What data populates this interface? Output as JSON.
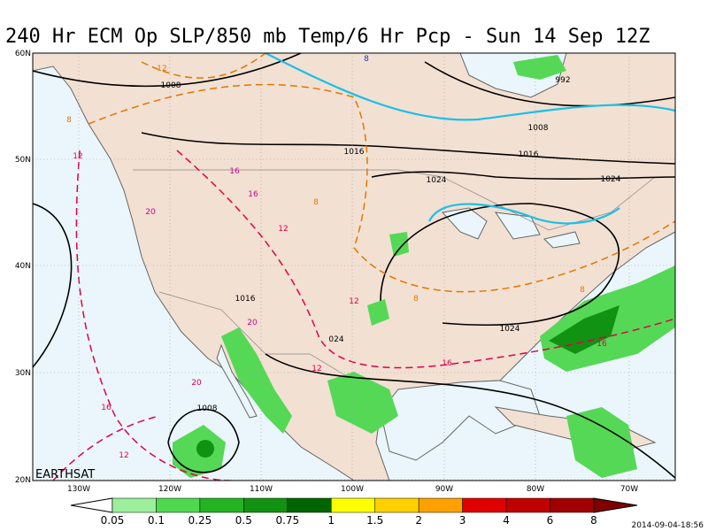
{
  "header": {
    "title": "240 Hr ECM Op SLP/850 mb Temp/6 Hr Pcp - Sun 14 Sep 12Z"
  },
  "map": {
    "lat_labels": [
      "60N",
      "50N",
      "40N",
      "30N",
      "20N"
    ],
    "lon_labels": [
      "130W",
      "120W",
      "110W",
      "100W",
      "90W",
      "80W",
      "70W"
    ],
    "contour_labels": [
      "12",
      "1008",
      "992",
      "8",
      "1008",
      "1016",
      "1016",
      "1024",
      "1024",
      "12",
      "16",
      "16",
      "20",
      "12",
      "8",
      "8",
      "1016",
      "20",
      "12",
      "8",
      "1024",
      "024",
      "12",
      "16",
      "16",
      "20",
      "16",
      "12",
      "1008",
      "8"
    ],
    "credit": "EARTHSAT"
  },
  "colorbar": {
    "levels": [
      0.05,
      0.1,
      0.25,
      0.5,
      0.75,
      1,
      1.5,
      2,
      3,
      4,
      6,
      8
    ],
    "colors": [
      "#ffffff",
      "#9cf09c",
      "#50d850",
      "#22b422",
      "#129212",
      "#006400",
      "#ffff00",
      "#ffd000",
      "#ffa000",
      "#e00000",
      "#c00000",
      "#a00000",
      "#800000"
    ]
  },
  "footer": {
    "timestamp": "2014-09-04-18:56"
  }
}
